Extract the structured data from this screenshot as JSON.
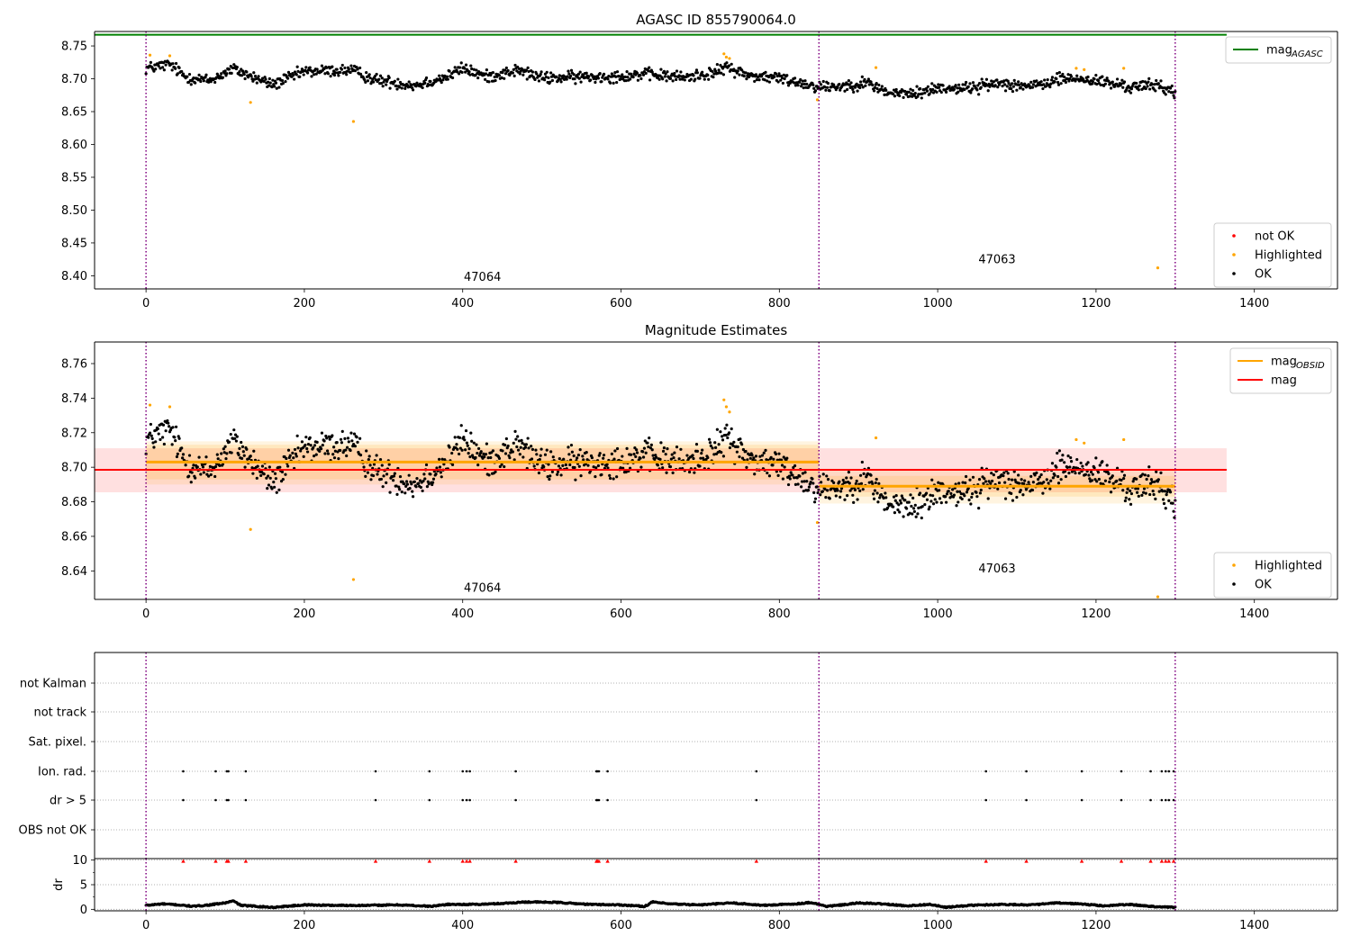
{
  "chart_data": [
    {
      "type": "scatter",
      "title": "AGASC ID 855790064.0",
      "xlim": [
        -65,
        1505
      ],
      "ylim": [
        8.38,
        8.772
      ],
      "xticks": [
        0,
        200,
        400,
        600,
        800,
        1000,
        1200,
        1400
      ],
      "yticks": [
        8.4,
        8.45,
        8.5,
        8.55,
        8.6,
        8.65,
        8.7,
        8.75
      ],
      "obs_boundaries": [
        0,
        850,
        1300
      ],
      "obs_labels": [
        {
          "text": "47064",
          "x": 425,
          "y": 8.392
        },
        {
          "text": "47063",
          "x": 1075,
          "y": 8.419
        }
      ],
      "reference_lines": [
        {
          "name": "mag",
          "subscript": "AGASC",
          "value": 8.767,
          "color": "#008000",
          "x_range": [
            -65,
            1365
          ]
        }
      ],
      "series": [
        {
          "name": "not OK",
          "color": "#ff0000",
          "points": []
        },
        {
          "name": "Highlighted",
          "color": "#ffa500",
          "points": [
            [
              5,
              8.736
            ],
            [
              30,
              8.735
            ],
            [
              132,
              8.664
            ],
            [
              262,
              8.635
            ],
            [
              730,
              8.738
            ],
            [
              733,
              8.733
            ],
            [
              737,
              8.731
            ],
            [
              848,
              8.668
            ],
            [
              922,
              8.717
            ],
            [
              1175,
              8.716
            ],
            [
              1185,
              8.714
            ],
            [
              1235,
              8.716
            ],
            [
              1278,
              8.412
            ]
          ]
        },
        {
          "name": "OK",
          "color": "#000000",
          "trend": [
            [
              0,
              8.716
            ],
            [
              30,
              8.722
            ],
            [
              50,
              8.703
            ],
            [
              80,
              8.697
            ],
            [
              110,
              8.715
            ],
            [
              140,
              8.7
            ],
            [
              160,
              8.691
            ],
            [
              200,
              8.711
            ],
            [
              260,
              8.713
            ],
            [
              290,
              8.698
            ],
            [
              340,
              8.69
            ],
            [
              380,
              8.703
            ],
            [
              400,
              8.716
            ],
            [
              430,
              8.703
            ],
            [
              470,
              8.713
            ],
            [
              500,
              8.701
            ],
            [
              560,
              8.703
            ],
            [
              600,
              8.704
            ],
            [
              630,
              8.707
            ],
            [
              680,
              8.702
            ],
            [
              720,
              8.71
            ],
            [
              735,
              8.718
            ],
            [
              760,
              8.705
            ],
            [
              800,
              8.701
            ],
            [
              850,
              8.688
            ],
            [
              880,
              8.689
            ],
            [
              910,
              8.694
            ],
            [
              940,
              8.678
            ],
            [
              970,
              8.677
            ],
            [
              1000,
              8.686
            ],
            [
              1040,
              8.686
            ],
            [
              1080,
              8.694
            ],
            [
              1120,
              8.688
            ],
            [
              1160,
              8.701
            ],
            [
              1200,
              8.697
            ],
            [
              1240,
              8.688
            ],
            [
              1280,
              8.69
            ],
            [
              1300,
              8.679
            ]
          ],
          "noise": 0.0045,
          "x_range": [
            0,
            1300
          ],
          "n": 1300
        }
      ],
      "legends": [
        {
          "placement": "upper right",
          "entries": [
            {
              "label": "mag",
              "subscript": "AGASC",
              "kind": "line",
              "color": "#008000"
            }
          ]
        },
        {
          "placement": "lower right",
          "entries": [
            {
              "label": "not OK",
              "kind": "dot",
              "color": "#ff0000"
            },
            {
              "label": "Highlighted",
              "kind": "dot",
              "color": "#ffa500"
            },
            {
              "label": "OK",
              "kind": "dot",
              "color": "#000000"
            }
          ]
        }
      ]
    },
    {
      "type": "scatter",
      "title": "Magnitude Estimates",
      "xlim": [
        -65,
        1505
      ],
      "ylim": [
        8.6235,
        8.7725
      ],
      "xticks": [
        0,
        200,
        400,
        600,
        800,
        1000,
        1200,
        1400
      ],
      "yticks": [
        8.64,
        8.66,
        8.68,
        8.7,
        8.72,
        8.74,
        8.76
      ],
      "obs_boundaries": [
        0,
        850,
        1300
      ],
      "obs_labels": [
        {
          "text": "47064",
          "x": 425,
          "y": 8.628
        },
        {
          "text": "47063",
          "x": 1075,
          "y": 8.639
        }
      ],
      "mag": {
        "value": 8.6985,
        "band": [
          8.6855,
          8.711
        ],
        "x_range": [
          -65,
          1365
        ],
        "color": "#ff0000"
      },
      "mag_obsid": [
        {
          "x_range": [
            0,
            850
          ],
          "value": 8.703,
          "band_inner": [
            8.693,
            8.713
          ],
          "band_outer": [
            8.69,
            8.715
          ]
        },
        {
          "x_range": [
            850,
            1300
          ],
          "value": 8.689,
          "band_inner": [
            8.683,
            8.695
          ],
          "band_outer": [
            8.679,
            8.699
          ]
        }
      ],
      "series": [
        {
          "name": "Highlighted",
          "color": "#ffa500",
          "points": [
            [
              5,
              8.736
            ],
            [
              30,
              8.735
            ],
            [
              132,
              8.664
            ],
            [
              262,
              8.635
            ],
            [
              730,
              8.739
            ],
            [
              733,
              8.735
            ],
            [
              737,
              8.732
            ],
            [
              848,
              8.668
            ],
            [
              922,
              8.717
            ],
            [
              1175,
              8.716
            ],
            [
              1185,
              8.714
            ],
            [
              1235,
              8.716
            ],
            [
              1278,
              8.625
            ]
          ]
        },
        {
          "name": "OK",
          "color": "#000000",
          "same_as_panel": 0
        }
      ],
      "legends": [
        {
          "placement": "upper right",
          "entries": [
            {
              "label": "mag",
              "subscript": "OBSID",
              "kind": "line",
              "color": "#ffa500"
            },
            {
              "label": "mag",
              "kind": "line",
              "color": "#ff0000"
            }
          ]
        },
        {
          "placement": "lower right",
          "entries": [
            {
              "label": "Highlighted",
              "kind": "dot",
              "color": "#ffa500"
            },
            {
              "label": "OK",
              "kind": "dot",
              "color": "#000000"
            }
          ]
        }
      ]
    },
    {
      "type": "scatter",
      "xlim": [
        -65,
        1505
      ],
      "xticks": [
        0,
        200,
        400,
        600,
        800,
        1000,
        1200,
        1400
      ],
      "obs_boundaries": [
        0,
        850,
        1300
      ],
      "flag_rows": [
        "not Kalman",
        "not track",
        "Sat. pixel.",
        "Ion. rad.",
        "dr > 5",
        "OBS not OK"
      ],
      "flag_times": {
        "Ion. rad.": [
          47,
          88,
          102,
          104,
          126,
          290,
          358,
          400,
          405,
          409,
          467,
          569,
          570,
          572,
          583,
          771,
          1061,
          1112,
          1182,
          1232,
          1269,
          1283,
          1288,
          1292,
          1298
        ],
        "dr > 5": [
          47,
          88,
          102,
          104,
          126,
          290,
          358,
          400,
          405,
          409,
          467,
          569,
          570,
          572,
          583,
          771,
          1061,
          1112,
          1182,
          1232,
          1269,
          1283,
          1288,
          1292,
          1298
        ]
      }
    },
    {
      "type": "scatter",
      "ylabel": "dr",
      "xlim": [
        -65,
        1505
      ],
      "ylim": [
        -0.3,
        10.3
      ],
      "xticks": [
        0,
        200,
        400,
        600,
        800,
        1000,
        1200,
        1400
      ],
      "yticks": [
        0,
        5,
        10
      ],
      "obs_boundaries": [
        0,
        850,
        1300
      ],
      "clipped_marker_times": [
        47,
        88,
        102,
        104,
        126,
        290,
        358,
        400,
        405,
        409,
        467,
        569,
        570,
        572,
        583,
        771,
        1061,
        1112,
        1182,
        1232,
        1269,
        1283,
        1288,
        1292,
        1298
      ],
      "trend": [
        [
          0,
          0.8
        ],
        [
          20,
          1.1
        ],
        [
          40,
          0.9
        ],
        [
          60,
          0.6
        ],
        [
          80,
          0.9
        ],
        [
          100,
          1.3
        ],
        [
          110,
          1.7
        ],
        [
          120,
          0.8
        ],
        [
          160,
          0.4
        ],
        [
          200,
          0.9
        ],
        [
          240,
          0.8
        ],
        [
          280,
          0.8
        ],
        [
          320,
          0.9
        ],
        [
          360,
          0.6
        ],
        [
          380,
          1.0
        ],
        [
          420,
          1.0
        ],
        [
          450,
          1.2
        ],
        [
          480,
          1.5
        ],
        [
          520,
          1.4
        ],
        [
          560,
          1.0
        ],
        [
          600,
          0.9
        ],
        [
          630,
          0.6
        ],
        [
          640,
          1.5
        ],
        [
          660,
          1.1
        ],
        [
          700,
          0.9
        ],
        [
          740,
          1.3
        ],
        [
          780,
          0.8
        ],
        [
          820,
          1.1
        ],
        [
          840,
          1.4
        ],
        [
          860,
          0.6
        ],
        [
          880,
          0.9
        ],
        [
          900,
          1.3
        ],
        [
          930,
          1.1
        ],
        [
          960,
          0.7
        ],
        [
          990,
          1.0
        ],
        [
          1010,
          0.4
        ],
        [
          1040,
          0.8
        ],
        [
          1080,
          1.0
        ],
        [
          1120,
          0.9
        ],
        [
          1150,
          1.3
        ],
        [
          1180,
          1.1
        ],
        [
          1210,
          0.7
        ],
        [
          1240,
          1.0
        ],
        [
          1270,
          0.6
        ],
        [
          1300,
          0.4
        ]
      ],
      "n": 1300
    }
  ]
}
